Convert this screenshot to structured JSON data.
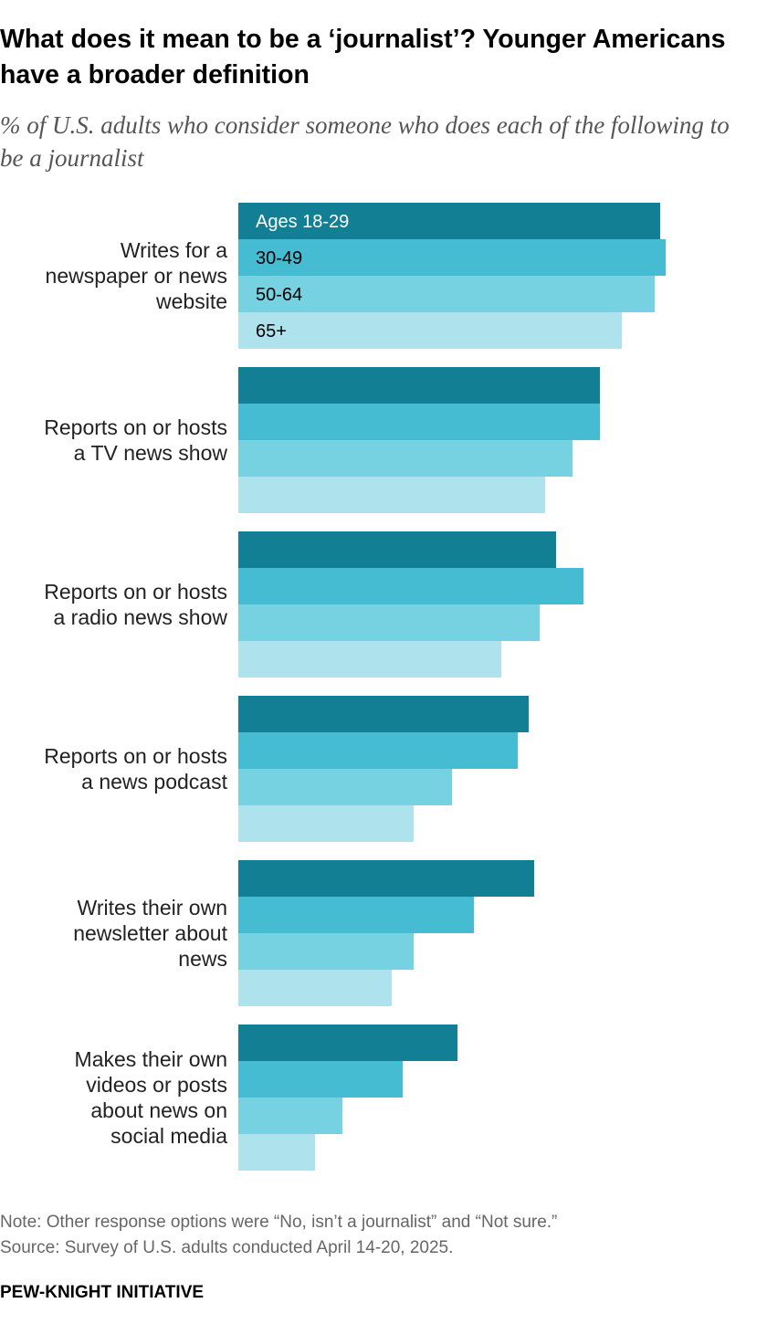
{
  "chart_data": {
    "type": "bar",
    "orientation": "horizontal",
    "title": "What does it mean to be a ‘journalist’? Younger Americans have a broader definition",
    "subtitle": "% of U.S. adults who consider someone who does each of the following to be a journalist",
    "categories": [
      "Writes for a newspaper or news website",
      "Reports on or hosts a TV news show",
      "Reports on or hosts a radio news show",
      "Reports on or hosts a news podcast",
      "Writes their own newsletter about news",
      "Makes their own videos or posts about news on social media"
    ],
    "category_lines": [
      [
        "Writes for a",
        "newspaper or news",
        "website"
      ],
      [
        "Reports on or hosts",
        "a TV news show"
      ],
      [
        "Reports on or hosts",
        "a radio news show"
      ],
      [
        "Reports on or hosts",
        "a news podcast"
      ],
      [
        "Writes their own",
        "newsletter about",
        "news"
      ],
      [
        "Makes their own",
        "videos or posts",
        "about news on",
        "social media"
      ]
    ],
    "series": [
      {
        "name": "Ages 18-29",
        "color": "#127f94",
        "label_color": "#ffffff",
        "values": [
          77,
          66,
          58,
          53,
          54,
          40
        ]
      },
      {
        "name": "30-49",
        "color": "#45bcd1",
        "label_color": "#000000",
        "values": [
          78,
          66,
          63,
          51,
          43,
          30
        ]
      },
      {
        "name": "50-64",
        "color": "#76d1e0",
        "label_color": "#000000",
        "values": [
          76,
          61,
          55,
          39,
          32,
          19
        ]
      },
      {
        "name": "65+",
        "color": "#aee3ee",
        "label_color": "#000000",
        "values": [
          70,
          56,
          48,
          32,
          28,
          14
        ]
      }
    ],
    "xlim": [
      0,
      100
    ],
    "legend": "inside first group of bars",
    "grid": false
  },
  "note": "Note: Other response options were “No, isn’t a journalist” and “Not sure.”",
  "source": "Source: Survey of U.S. adults conducted April 14-20, 2025.",
  "brand": "PEW-KNIGHT INITIATIVE"
}
